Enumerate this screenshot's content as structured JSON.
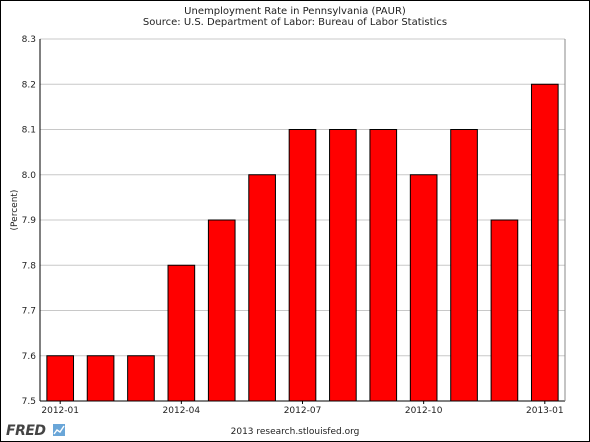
{
  "chart_data": {
    "type": "bar",
    "title": "Unemployment Rate in Pennsylvania (PAUR)",
    "subtitle": "Source: U.S. Department of Labor: Bureau of Labor Statistics",
    "ylabel": "(Percent)",
    "xlabel": "",
    "ylim": [
      7.5,
      8.3
    ],
    "yticks": [
      7.5,
      7.6,
      7.7,
      7.8,
      7.9,
      8.0,
      8.1,
      8.2,
      8.3
    ],
    "ytick_labels": [
      "7.5",
      "7.6",
      "7.7",
      "7.8",
      "7.9",
      "8.0",
      "8.1",
      "8.2",
      "8.3"
    ],
    "categories": [
      "2012-01",
      "2012-02",
      "2012-03",
      "2012-04",
      "2012-05",
      "2012-06",
      "2012-07",
      "2012-08",
      "2012-09",
      "2012-10",
      "2012-11",
      "2012-12",
      "2013-01"
    ],
    "values": [
      7.6,
      7.6,
      7.6,
      7.8,
      7.9,
      8.0,
      8.1,
      8.1,
      8.1,
      8.0,
      8.1,
      7.9,
      8.2
    ],
    "xtick_labels": [
      "2012-01",
      "2012-04",
      "2012-07",
      "2012-10",
      "2013-01"
    ],
    "xtick_label_indices": [
      0,
      3,
      6,
      9,
      12
    ],
    "bar_color": "#ff0000",
    "bar_edge_color": "#000000",
    "grid": "horizontal"
  },
  "footer": {
    "logo": "FRED",
    "credit": "2013 research.stlouisfed.org"
  }
}
